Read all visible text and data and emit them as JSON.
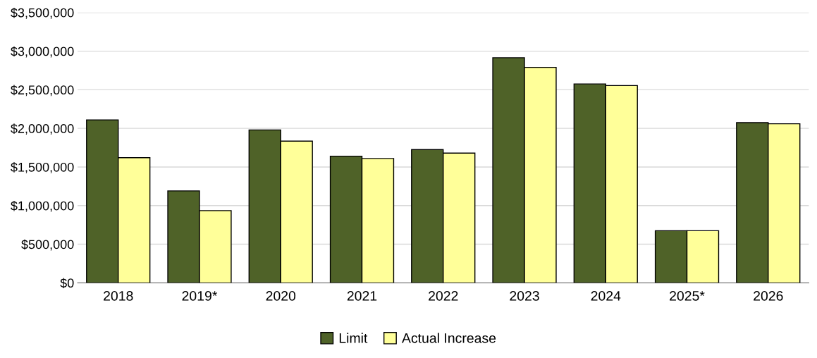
{
  "chart_data": {
    "type": "bar",
    "categories": [
      "2018",
      "2019*",
      "2020",
      "2021",
      "2022",
      "2023",
      "2024",
      "2025*",
      "2026"
    ],
    "series": [
      {
        "name": "Limit",
        "color": "#4f6228",
        "values": [
          2110000,
          1190000,
          1980000,
          1640000,
          1725000,
          2915000,
          2575000,
          675000,
          2075000
        ]
      },
      {
        "name": "Actual Increase",
        "color": "#ffff99",
        "values": [
          1620000,
          935000,
          1835000,
          1610000,
          1680000,
          2790000,
          2555000,
          675000,
          2060000
        ]
      }
    ],
    "ylim": [
      0,
      3500000
    ],
    "yticks": [
      {
        "value": 0,
        "label": "$0"
      },
      {
        "value": 500000,
        "label": "$500,000"
      },
      {
        "value": 1000000,
        "label": "$1,000,000"
      },
      {
        "value": 1500000,
        "label": "$1,500,000"
      },
      {
        "value": 2000000,
        "label": "$2,000,000"
      },
      {
        "value": 2500000,
        "label": "$2,500,000"
      },
      {
        "value": 3000000,
        "label": "$3,000,000"
      },
      {
        "value": 3500000,
        "label": "$3,500,000"
      }
    ],
    "grid": "y",
    "legend": "bottom"
  }
}
